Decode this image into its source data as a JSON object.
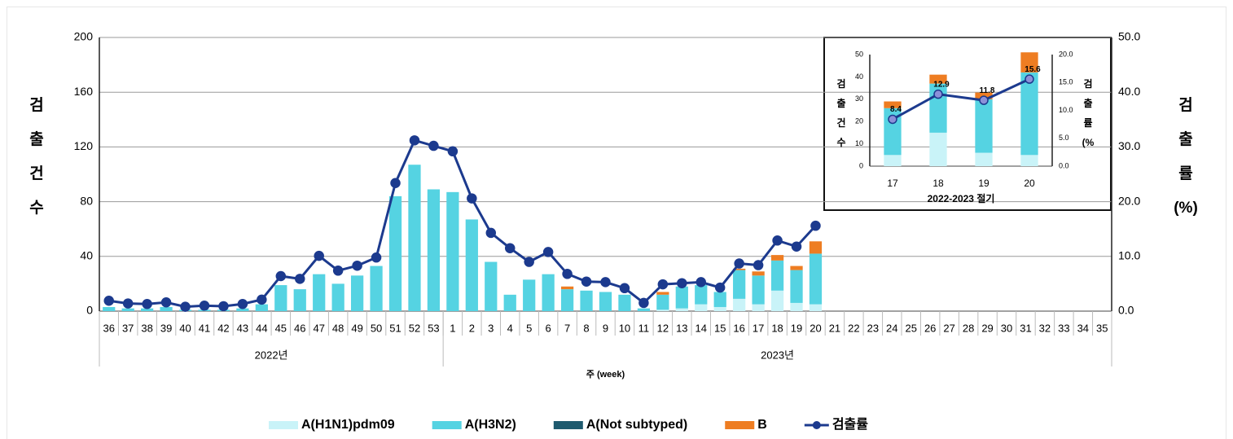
{
  "chart_data": [
    {
      "type": "combo",
      "y_label": "검출건수",
      "y2_label": "검출률(%)",
      "x_label": "주 (week)",
      "year_labels": [
        "2022년",
        "2023년"
      ],
      "categories": [
        "36",
        "37",
        "38",
        "39",
        "40",
        "41",
        "42",
        "43",
        "44",
        "45",
        "46",
        "47",
        "48",
        "49",
        "50",
        "51",
        "52",
        "53",
        "1",
        "2",
        "3",
        "4",
        "5",
        "6",
        "7",
        "8",
        "9",
        "10",
        "11",
        "12",
        "13",
        "14",
        "15",
        "16",
        "17",
        "18",
        "19",
        "20",
        "21",
        "22",
        "23",
        "24",
        "25",
        "26",
        "27",
        "28",
        "29",
        "30",
        "31",
        "32",
        "33",
        "34",
        "35"
      ],
      "series": [
        {
          "name": "A(H1N1)pdm09",
          "type": "bar",
          "color": "#c9f3f8",
          "values": [
            0,
            0,
            0,
            0,
            0,
            0,
            0,
            0,
            0,
            0,
            0,
            0,
            0,
            0,
            0,
            0,
            0,
            0,
            0,
            0,
            0,
            0,
            0,
            0,
            0,
            0,
            0,
            0,
            0,
            1,
            2,
            5,
            3,
            9,
            5,
            15,
            6,
            5,
            null,
            null,
            null,
            null,
            null,
            null,
            null,
            null,
            null,
            null,
            null,
            null,
            null,
            null,
            null
          ]
        },
        {
          "name": "A(H3N2)",
          "type": "bar",
          "color": "#55d3e2",
          "values": [
            3,
            2,
            2,
            3,
            1,
            1,
            1,
            2,
            5,
            19,
            16,
            27,
            20,
            26,
            33,
            84,
            107,
            89,
            87,
            67,
            36,
            12,
            23,
            27,
            16,
            15,
            14,
            12,
            2,
            11,
            16,
            14,
            11,
            21,
            21,
            22,
            24,
            37,
            null,
            null,
            null,
            null,
            null,
            null,
            null,
            null,
            null,
            null,
            null,
            null,
            null,
            null,
            null
          ]
        },
        {
          "name": "A(Not subtyped)",
          "type": "bar",
          "color": "#1e5a6e",
          "values": [
            0,
            0,
            0,
            0,
            0,
            0,
            0,
            0,
            0,
            0,
            0,
            0,
            0,
            0,
            0,
            0,
            0,
            0,
            0,
            0,
            0,
            0,
            0,
            0,
            0,
            0,
            0,
            0,
            0,
            0,
            0,
            0,
            0,
            0,
            0,
            0,
            0,
            0,
            null,
            null,
            null,
            null,
            null,
            null,
            null,
            null,
            null,
            null,
            null,
            null,
            null,
            null,
            null
          ]
        },
        {
          "name": "B",
          "type": "bar",
          "color": "#ee7d22",
          "values": [
            0,
            0,
            0,
            0,
            0,
            0,
            0,
            0,
            0,
            0,
            0,
            0,
            0,
            0,
            0,
            0,
            0,
            0,
            0,
            0,
            0,
            0,
            0,
            0,
            2,
            0,
            0,
            0,
            0,
            2,
            0,
            0,
            0,
            1,
            3,
            4,
            3,
            9,
            null,
            null,
            null,
            null,
            null,
            null,
            null,
            null,
            null,
            null,
            null,
            null,
            null,
            null,
            null
          ]
        },
        {
          "name": "검출률",
          "type": "line",
          "axis": "y2",
          "color": "#1c3a8e",
          "marker_color": "#1c3a8e",
          "values": [
            1.9,
            1.4,
            1.3,
            1.6,
            0.8,
            1.0,
            0.9,
            1.3,
            2.1,
            6.4,
            5.9,
            10.1,
            7.4,
            8.3,
            9.8,
            23.4,
            31.2,
            30.2,
            29.2,
            20.6,
            14.3,
            11.5,
            9.0,
            10.8,
            6.8,
            5.4,
            5.3,
            4.2,
            1.5,
            4.9,
            5.1,
            5.3,
            4.3,
            8.7,
            8.4,
            12.9,
            11.8,
            15.6,
            null,
            null,
            null,
            null,
            null,
            null,
            null,
            null,
            null,
            null,
            null,
            null,
            null,
            null,
            null
          ]
        }
      ],
      "ylim": [
        0,
        200
      ],
      "yticks": [
        0,
        40,
        80,
        120,
        160,
        200
      ],
      "y2lim": [
        0,
        50
      ],
      "y2ticks": [
        {
          "value": 0,
          "label": "0.0"
        },
        {
          "value": 10,
          "label": "10.0"
        },
        {
          "value": 20,
          "label": "20.0"
        },
        {
          "value": 30,
          "label": "30.0"
        },
        {
          "value": 40,
          "label": "40.0"
        },
        {
          "value": 50,
          "label": "50.0"
        }
      ],
      "grid": true,
      "legend": "bottom"
    },
    {
      "type": "combo",
      "y_label": "검출건수",
      "y2_label": "검출률(%",
      "x_label": "2022-2023 절기",
      "categories": [
        "17",
        "18",
        "19",
        "20"
      ],
      "series": [
        {
          "name": "A(H1N1)pdm09",
          "type": "bar",
          "color": "#c9f3f8",
          "values": [
            5,
            15,
            6,
            5
          ]
        },
        {
          "name": "A(H3N2)",
          "type": "bar",
          "color": "#55d3e2",
          "values": [
            21,
            22,
            24,
            37
          ]
        },
        {
          "name": "A(Not subtyped)",
          "type": "bar",
          "color": "#1e5a6e",
          "values": [
            0,
            0,
            0,
            0
          ]
        },
        {
          "name": "B",
          "type": "bar",
          "color": "#ee7d22",
          "values": [
            3,
            4,
            3,
            9
          ]
        },
        {
          "name": "검출률",
          "type": "line",
          "axis": "y2",
          "color": "#1c3a8e",
          "marker_color": "#8c90d8",
          "values": [
            8.4,
            12.9,
            11.8,
            15.6
          ],
          "show_value_labels": true
        }
      ],
      "ylim": [
        0,
        50
      ],
      "yticks": [
        0,
        10,
        20,
        30,
        40,
        50
      ],
      "y2lim": [
        0,
        20
      ],
      "y2ticks": [
        {
          "value": 0,
          "label": "0.0"
        },
        {
          "value": 5,
          "label": "5.0"
        },
        {
          "value": 10,
          "label": "10.0"
        },
        {
          "value": 15,
          "label": "15.0"
        },
        {
          "value": 20,
          "label": "20.0"
        }
      ],
      "grid": false
    }
  ]
}
